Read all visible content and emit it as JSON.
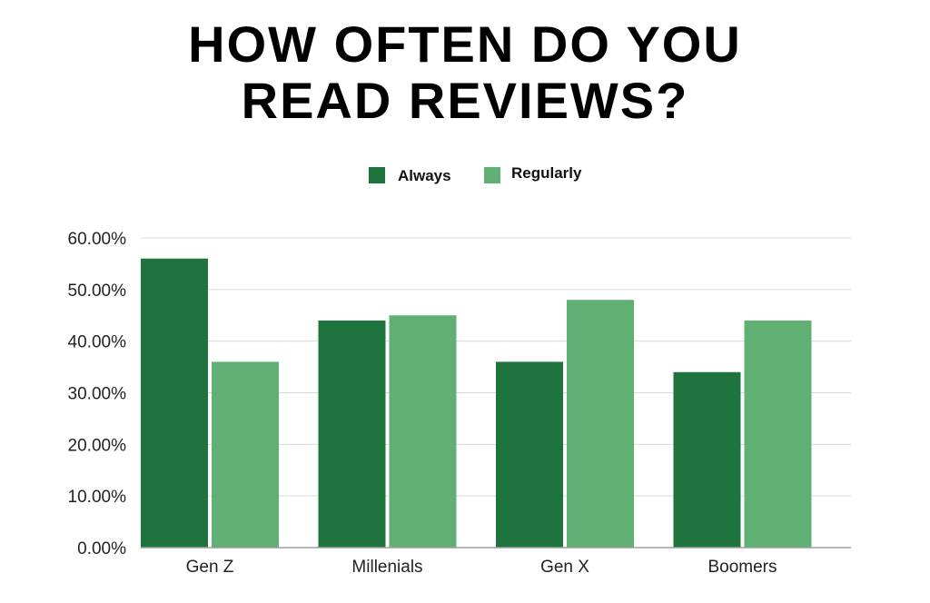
{
  "chart_data": {
    "type": "bar",
    "title_lines": [
      "HOW OFTEN DO YOU",
      "READ REVIEWS?"
    ],
    "title": "HOW OFTEN DO YOU READ REVIEWS?",
    "categories": [
      "Gen Z",
      "Millenials",
      "Gen X",
      "Boomers"
    ],
    "series": [
      {
        "name": "Always",
        "color": "#1f733d",
        "values": [
          56,
          44,
          36,
          34
        ]
      },
      {
        "name": "Regularly",
        "color": "#60b074",
        "values": [
          36,
          45,
          48,
          44
        ]
      }
    ],
    "y_ticks": [
      "0.00%",
      "10.00%",
      "20.00%",
      "30.00%",
      "40.00%",
      "50.00%",
      "60.00%"
    ],
    "ylim": [
      0,
      60
    ],
    "y_unit": "percent",
    "grid": true,
    "legend_position": "top-center",
    "gridline_color": "#d9d9d9",
    "axis_color": "#9e9e9e"
  }
}
